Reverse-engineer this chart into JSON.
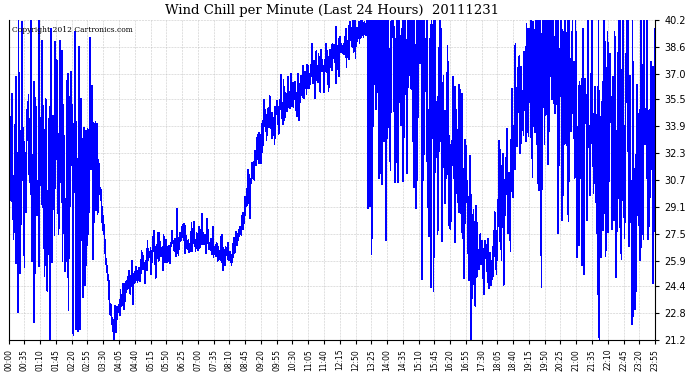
{
  "title": "Wind Chill per Minute (Last 24 Hours)  20111231",
  "copyright": "Copyright 2012 Cartronics.com",
  "yticks": [
    21.2,
    22.8,
    24.4,
    25.9,
    27.5,
    29.1,
    30.7,
    32.3,
    33.9,
    35.5,
    37.0,
    38.6,
    40.2
  ],
  "ymin": 21.2,
  "ymax": 40.2,
  "line_color": "#0000FF",
  "bg_color": "#FFFFFF",
  "plot_bg_color": "#FFFFFF",
  "grid_color": "#BBBBBB",
  "xtick_labels": [
    "00:00",
    "00:35",
    "01:10",
    "01:45",
    "02:20",
    "02:55",
    "03:30",
    "04:05",
    "04:40",
    "05:15",
    "05:50",
    "06:25",
    "07:00",
    "07:35",
    "08:10",
    "08:45",
    "09:20",
    "09:55",
    "10:30",
    "11:05",
    "11:40",
    "12:15",
    "12:50",
    "13:25",
    "14:00",
    "14:35",
    "15:10",
    "15:45",
    "16:20",
    "16:55",
    "17:30",
    "18:05",
    "18:40",
    "19:15",
    "19:50",
    "20:25",
    "21:00",
    "21:35",
    "22:10",
    "22:45",
    "23:20",
    "23:55"
  ],
  "num_minutes": 1440,
  "figwidth": 6.9,
  "figheight": 3.75,
  "dpi": 100
}
